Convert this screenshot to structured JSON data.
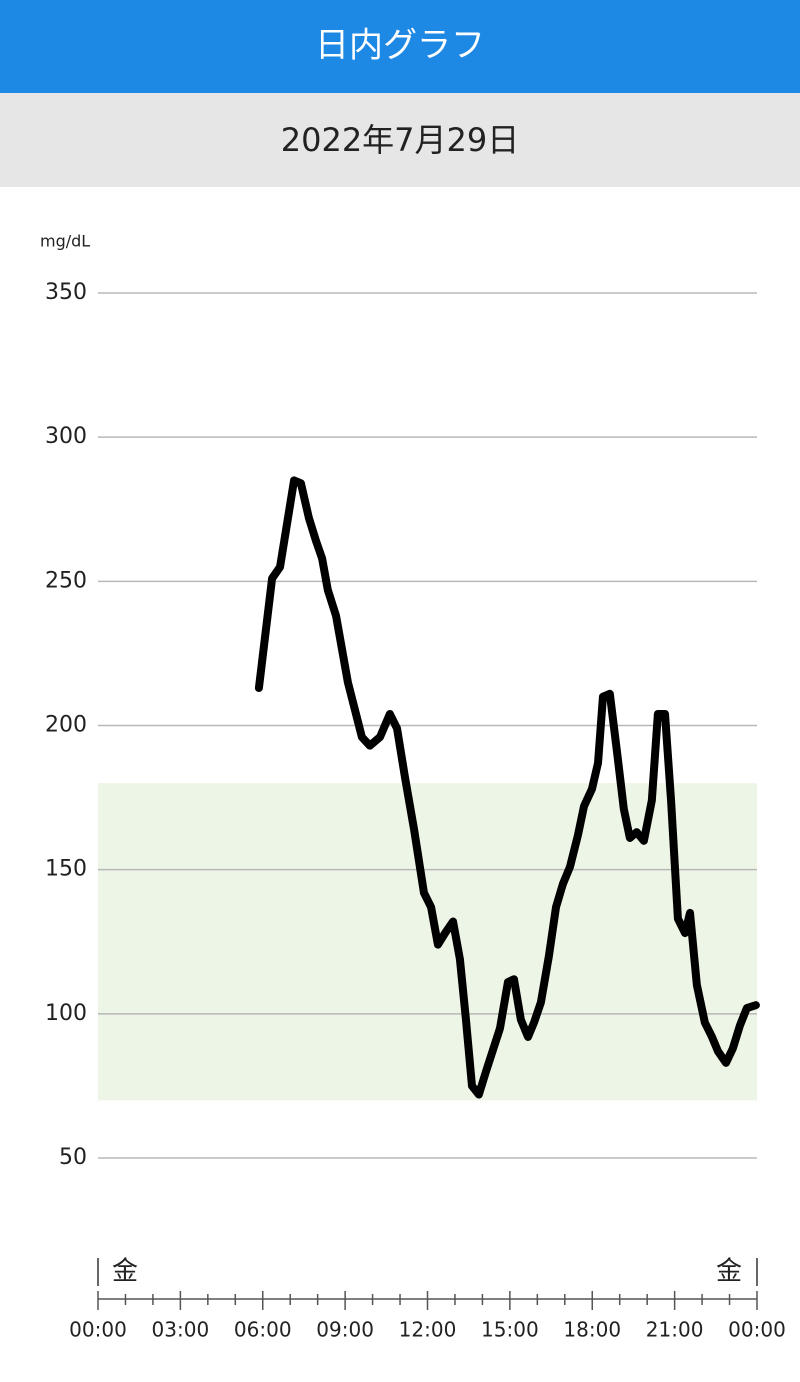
{
  "header": {
    "title": "日内グラフ",
    "date": "2022年7月29日"
  },
  "chart_data": {
    "type": "line",
    "y_label": "mg/dL",
    "x": [
      5.86,
      6.34,
      6.63,
      7.14,
      7.39,
      7.68,
      7.94,
      8.16,
      8.37,
      8.67,
      9.1,
      9.61,
      9.9,
      10.27,
      10.63,
      10.89,
      11.18,
      11.51,
      11.87,
      12.13,
      12.38,
      12.64,
      12.93,
      13.18,
      13.4,
      13.62,
      13.87,
      14.13,
      14.64,
      14.93,
      15.15,
      15.4,
      15.66,
      15.88,
      16.13,
      16.42,
      16.68,
      16.93,
      17.19,
      17.48,
      17.7,
      17.99,
      18.21,
      18.39,
      18.64,
      18.9,
      19.15,
      19.37,
      19.62,
      19.88,
      20.17,
      20.39,
      20.65,
      20.87,
      21.12,
      21.38,
      21.56,
      21.81,
      22.1,
      22.36,
      22.58,
      22.87,
      23.12,
      23.38,
      23.63,
      23.96
    ],
    "series": [
      {
        "color": "#000000",
        "values": [
          213,
          251,
          255,
          285,
          284,
          272,
          264,
          258,
          247,
          238,
          215,
          196,
          193,
          196,
          204,
          199,
          182,
          164,
          142,
          137,
          124,
          128,
          132,
          119,
          98,
          75,
          72,
          80,
          95,
          111,
          112,
          98,
          92,
          97,
          104,
          120,
          137,
          145,
          151,
          162,
          172,
          178,
          187,
          210,
          211,
          191,
          171,
          161,
          163,
          160,
          174,
          204,
          204,
          174,
          133,
          128,
          135,
          110,
          97,
          92,
          87,
          83,
          88,
          96,
          102,
          103
        ]
      }
    ],
    "xlim": [
      0,
      24
    ],
    "xticks": [
      {
        "value": 0,
        "label": "00:00"
      },
      {
        "value": 3,
        "label": "03:00"
      },
      {
        "value": 6,
        "label": "06:00"
      },
      {
        "value": 9,
        "label": "09:00"
      },
      {
        "value": 12,
        "label": "12:00"
      },
      {
        "value": 15,
        "label": "15:00"
      },
      {
        "value": 18,
        "label": "18:00"
      },
      {
        "value": 21,
        "label": "21:00"
      },
      {
        "value": 24,
        "label": "00:00"
      }
    ],
    "xminorticks": [
      1,
      2,
      4,
      5,
      7,
      8,
      10,
      11,
      13,
      14,
      16,
      17,
      19,
      20,
      22,
      23
    ],
    "ylim": [
      50,
      350
    ],
    "yticks": [
      50,
      100,
      150,
      200,
      250,
      300,
      350
    ],
    "grid": true,
    "target_range": [
      70,
      180
    ],
    "target_color": "#edf5e6",
    "day_labels": [
      "金",
      "金"
    ]
  }
}
